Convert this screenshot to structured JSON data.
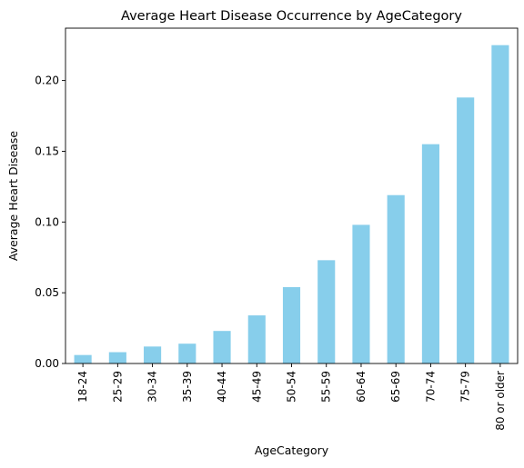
{
  "chart_data": {
    "type": "bar",
    "title": "Average Heart Disease Occurrence by AgeCategory",
    "xlabel": "AgeCategory",
    "ylabel": "Average Heart Disease",
    "categories": [
      "18-24",
      "25-29",
      "30-34",
      "35-39",
      "40-44",
      "45-49",
      "50-54",
      "55-59",
      "60-64",
      "65-69",
      "70-74",
      "75-79",
      "80 or older"
    ],
    "values": [
      0.006,
      0.008,
      0.012,
      0.014,
      0.023,
      0.034,
      0.054,
      0.073,
      0.098,
      0.119,
      0.155,
      0.188,
      0.225
    ],
    "ylim": [
      0,
      0.237
    ],
    "yticks": [
      0.0,
      0.05,
      0.1,
      0.15,
      0.2
    ],
    "ytick_labels": [
      "0.00",
      "0.05",
      "0.10",
      "0.15",
      "0.20"
    ],
    "bar_color": "#87ceeb",
    "grid": false,
    "legend": "none"
  }
}
